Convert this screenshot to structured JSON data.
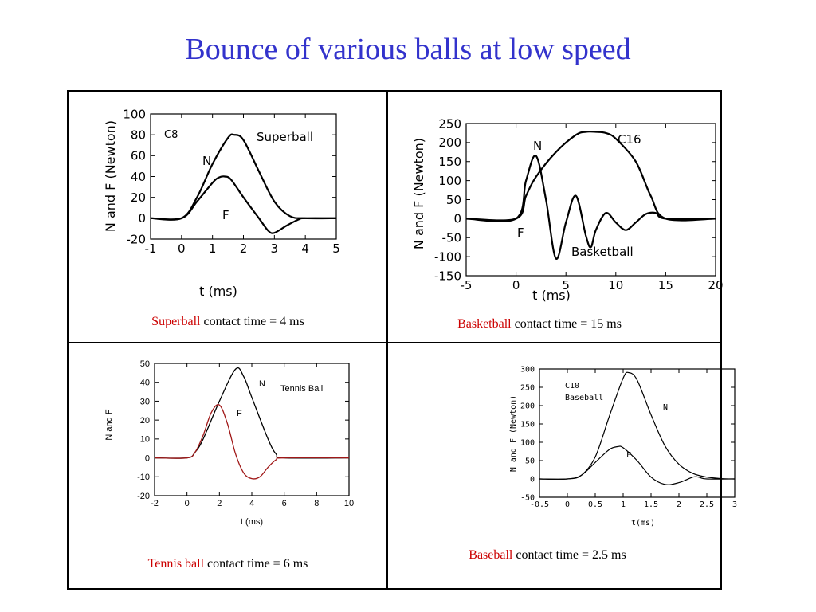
{
  "slide": {
    "title": "Bounce of various balls at low speed"
  },
  "colors": {
    "title": "#3333cc",
    "ball_name": "#cc0000",
    "tennis_f": "#a01818",
    "line": "#000000"
  },
  "captions": [
    {
      "ball": "Superball",
      "text": " contact time = 4 ms"
    },
    {
      "ball": "Basketball",
      "text": " contact time = 15 ms"
    },
    {
      "ball": "Tennis ball",
      "text": " contact time = 6 ms"
    },
    {
      "ball": "Baseball",
      "text": " contact time = 2.5 ms"
    }
  ],
  "chart_data": [
    {
      "type": "line",
      "xlabel": "t  (ms)",
      "ylabel": "N  and F (Newton)",
      "xlim": [
        -1,
        5
      ],
      "ylim": [
        -20,
        100
      ],
      "xticks": [
        "-1",
        "0",
        "1",
        "2",
        "3",
        "4",
        "5"
      ],
      "yticks": [
        "-20",
        "0",
        "20",
        "40",
        "60",
        "80",
        "100"
      ],
      "annotations": [
        "C8",
        "Superball"
      ],
      "series": [
        {
          "name": "N",
          "x": [
            -1,
            0,
            0.5,
            1,
            1.5,
            1.7,
            2,
            2.5,
            3,
            3.5,
            4,
            5
          ],
          "y": [
            0,
            0,
            20,
            52,
            77,
            80,
            75,
            45,
            16,
            2,
            0,
            0
          ]
        },
        {
          "name": "F",
          "x": [
            -1,
            0,
            0.5,
            1,
            1.2,
            1.4,
            1.6,
            2,
            2.5,
            2.8,
            3,
            3.4,
            3.8,
            4,
            5
          ],
          "y": [
            0,
            0,
            16,
            34,
            39,
            40,
            37,
            20,
            0,
            -12,
            -14,
            -7,
            -1,
            0,
            0
          ]
        }
      ]
    },
    {
      "type": "line",
      "xlabel": "t   (ms)",
      "ylabel": "N  and F (Newton)",
      "xlim": [
        -5,
        20
      ],
      "ylim": [
        -150,
        250
      ],
      "xticks": [
        "-5",
        "0",
        "5",
        "10",
        "15",
        "20"
      ],
      "yticks": [
        "-150",
        "-100",
        "-50",
        "0",
        "50",
        "100",
        "150",
        "200",
        "250"
      ],
      "annotations": [
        "C16",
        "Basketball"
      ],
      "series": [
        {
          "name": "N",
          "x": [
            -5,
            0,
            1,
            2,
            4,
            6,
            7,
            8,
            9,
            10,
            12,
            13.5,
            15,
            20
          ],
          "y": [
            0,
            0,
            60,
            110,
            175,
            220,
            228,
            228,
            225,
            210,
            150,
            60,
            0,
            0
          ]
        },
        {
          "name": "F",
          "x": [
            -5,
            0,
            1,
            2,
            3,
            4,
            5,
            6,
            7,
            7.5,
            8,
            9,
            10,
            11,
            12,
            13,
            14,
            15,
            20
          ],
          "y": [
            0,
            0,
            100,
            165,
            50,
            -105,
            -10,
            60,
            -45,
            -75,
            -30,
            15,
            -10,
            -30,
            -10,
            12,
            15,
            0,
            0
          ]
        }
      ]
    },
    {
      "type": "line",
      "xlabel": "t (ms)",
      "ylabel": "N and F",
      "xlim": [
        -2,
        10
      ],
      "ylim": [
        -20,
        50
      ],
      "xticks": [
        "-2",
        "0",
        "2",
        "4",
        "6",
        "8",
        "10"
      ],
      "yticks": [
        "-20",
        "-10",
        "0",
        "10",
        "20",
        "30",
        "40",
        "50"
      ],
      "annotations": [
        "Tennis Ball"
      ],
      "series": [
        {
          "name": "N",
          "x": [
            -2,
            0,
            0.5,
            1,
            2,
            3,
            3.5,
            4,
            5,
            5.5,
            6,
            10
          ],
          "y": [
            0,
            0,
            3,
            10,
            30,
            47,
            43,
            32,
            10,
            2,
            0,
            0
          ]
        },
        {
          "name": "F",
          "x": [
            -2,
            0,
            0.5,
            1,
            1.5,
            2,
            2.5,
            3,
            3.5,
            4,
            4.5,
            5,
            5.5,
            6,
            10
          ],
          "y": [
            0,
            0,
            3,
            12,
            24,
            28,
            18,
            2,
            -8,
            -11,
            -10,
            -5,
            -1,
            0,
            0
          ]
        }
      ]
    },
    {
      "type": "line",
      "xlabel": "t(ms)",
      "ylabel": "N and F (Newton)",
      "xlim": [
        -0.5,
        3
      ],
      "ylim": [
        -50,
        300
      ],
      "xticks": [
        "-0.5",
        "0",
        "0.5",
        "1",
        "1.5",
        "2",
        "2.5",
        "3"
      ],
      "yticks": [
        "-50",
        "0",
        "50",
        "100",
        "150",
        "200",
        "250",
        "300"
      ],
      "annotations": [
        "C10",
        "Baseball"
      ],
      "series": [
        {
          "name": "N",
          "x": [
            -0.5,
            0,
            0.25,
            0.5,
            0.75,
            1,
            1.1,
            1.25,
            1.5,
            1.75,
            2,
            2.25,
            2.5,
            2.75,
            3
          ],
          "y": [
            0,
            0,
            10,
            60,
            170,
            275,
            290,
            270,
            175,
            90,
            40,
            15,
            5,
            1,
            0
          ]
        },
        {
          "name": "F",
          "x": [
            -0.5,
            0,
            0.25,
            0.5,
            0.75,
            0.9,
            1,
            1.25,
            1.5,
            1.75,
            2,
            2.25,
            2.35,
            2.5,
            3
          ],
          "y": [
            0,
            0,
            10,
            45,
            80,
            88,
            85,
            50,
            5,
            -15,
            -10,
            5,
            5,
            0,
            0
          ]
        }
      ]
    }
  ]
}
